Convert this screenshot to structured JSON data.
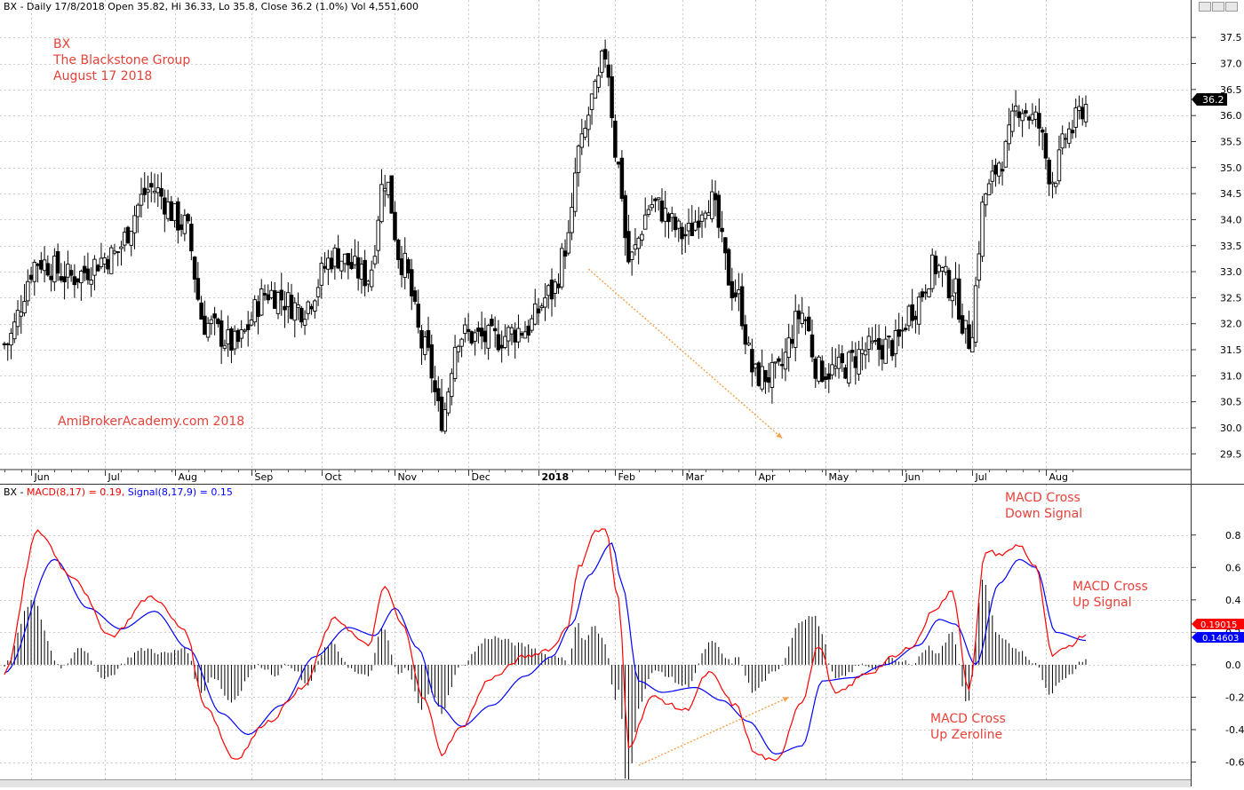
{
  "price_pane": {
    "header": "BX - Daily 17/8/2018 Open 35.82, Hi 36.33, Lo 35.8, Close 36.2 (1.0%) Vol 4,551,600",
    "annotation_ticker": "BX",
    "annotation_company": "The Blackstone Group",
    "annotation_date": "August 17 2018",
    "watermark": "AmiBrokerAcademy.com  2018",
    "price_label": "36.2",
    "months": [
      "Jun",
      "Jul",
      "Aug",
      "Sep",
      "Oct",
      "Nov",
      "Dec",
      "2018",
      "Feb",
      "Mar",
      "Apr",
      "May",
      "Jun",
      "Jul",
      "Aug"
    ]
  },
  "macd_pane": {
    "header_prefix": "BX - ",
    "macd_label": "MACD(8,17) = 0.19, ",
    "signal_label": "Signal(8,17,9) = 0.15",
    "note_cross_down_1": "MACD Cross",
    "note_cross_down_2": "Down Signal",
    "note_cross_up_signal_1": "MACD Cross",
    "note_cross_up_signal_2": "Up Signal",
    "note_zeroline_1": "MACD Cross",
    "note_zeroline_2": "Up Zeroline",
    "macd_value_label": "0.19015",
    "signal_value_label": "0.14603"
  },
  "colors": {
    "macd": "#ff0000",
    "signal": "#0000ff",
    "annotation": "#e8413a",
    "trend_arrow": "#f5a04a",
    "candle": "#000000",
    "histogram": "#000000"
  },
  "chart_data": [
    {
      "type": "candlestick",
      "title": "BX - Daily 17/8/2018",
      "ylim": [
        29.3,
        37.7
      ],
      "y_ticks": [
        29.5,
        30.0,
        30.5,
        31.0,
        31.5,
        32.0,
        32.5,
        33.0,
        33.5,
        34.0,
        34.5,
        35.0,
        35.5,
        36.0,
        36.5,
        37.0,
        37.5
      ],
      "x_start": "2017-05-22",
      "x_end": "2018-08-17",
      "last": {
        "open": 35.82,
        "high": 36.33,
        "low": 35.8,
        "close": 36.2,
        "volume": 4551600,
        "change_pct": 1.0
      },
      "close_path": [
        {
          "date": "2017-05-22",
          "close": 31.6
        },
        {
          "date": "2017-06-05",
          "close": 33.2
        },
        {
          "date": "2017-06-19",
          "close": 32.9
        },
        {
          "date": "2017-07-05",
          "close": 33.3
        },
        {
          "date": "2017-07-21",
          "close": 34.6
        },
        {
          "date": "2017-08-04",
          "close": 33.9
        },
        {
          "date": "2017-08-14",
          "close": 32.0
        },
        {
          "date": "2017-08-25",
          "close": 31.6
        },
        {
          "date": "2017-09-08",
          "close": 32.6
        },
        {
          "date": "2017-09-22",
          "close": 32.3
        },
        {
          "date": "2017-10-06",
          "close": 33.3
        },
        {
          "date": "2017-10-20",
          "close": 32.9
        },
        {
          "date": "2017-10-27",
          "close": 34.8
        },
        {
          "date": "2017-11-03",
          "close": 33.2
        },
        {
          "date": "2017-11-14",
          "close": 31.5
        },
        {
          "date": "2017-11-21",
          "close": 30.2
        },
        {
          "date": "2017-11-28",
          "close": 31.8
        },
        {
          "date": "2017-12-12",
          "close": 31.7
        },
        {
          "date": "2017-12-26",
          "close": 31.9
        },
        {
          "date": "2018-01-05",
          "close": 32.6
        },
        {
          "date": "2018-01-12",
          "close": 33.6
        },
        {
          "date": "2018-01-17",
          "close": 35.3
        },
        {
          "date": "2018-01-24",
          "close": 36.4
        },
        {
          "date": "2018-01-29",
          "close": 37.2
        },
        {
          "date": "2018-02-02",
          "close": 35.0
        },
        {
          "date": "2018-02-07",
          "close": 33.2
        },
        {
          "date": "2018-02-16",
          "close": 34.3
        },
        {
          "date": "2018-03-02",
          "close": 33.7
        },
        {
          "date": "2018-03-13",
          "close": 34.4
        },
        {
          "date": "2018-03-23",
          "close": 32.6
        },
        {
          "date": "2018-04-02",
          "close": 31.0
        },
        {
          "date": "2018-04-10",
          "close": 31.0
        },
        {
          "date": "2018-04-20",
          "close": 32.2
        },
        {
          "date": "2018-04-27",
          "close": 31.1
        },
        {
          "date": "2018-05-04",
          "close": 31.1
        },
        {
          "date": "2018-05-18",
          "close": 31.5
        },
        {
          "date": "2018-05-30",
          "close": 31.6
        },
        {
          "date": "2018-06-06",
          "close": 32.3
        },
        {
          "date": "2018-06-15",
          "close": 33.1
        },
        {
          "date": "2018-06-22",
          "close": 32.7
        },
        {
          "date": "2018-06-29",
          "close": 31.7
        },
        {
          "date": "2018-07-06",
          "close": 34.5
        },
        {
          "date": "2018-07-13",
          "close": 35.2
        },
        {
          "date": "2018-07-20",
          "close": 36.2
        },
        {
          "date": "2018-07-27",
          "close": 35.9
        },
        {
          "date": "2018-08-03",
          "close": 34.8
        },
        {
          "date": "2018-08-10",
          "close": 35.7
        },
        {
          "date": "2018-08-17",
          "close": 36.2
        }
      ],
      "trend_arrow": {
        "from": [
          "2018-01-22",
          33.05
        ],
        "to": [
          "2018-04-12",
          29.8
        ]
      }
    },
    {
      "type": "line",
      "title": "MACD(8,17), Signal(8,17,9)",
      "ylim": [
        -0.63,
        0.93
      ],
      "y_ticks": [
        -0.6,
        -0.4,
        -0.2,
        0.0,
        0.2,
        0.4,
        0.6,
        0.8
      ],
      "last_values": {
        "MACD": 0.19015,
        "Signal": 0.14603
      },
      "series": [
        {
          "name": "MACD",
          "points": [
            {
              "date": "2017-05-22",
              "value": -0.05
            },
            {
              "date": "2017-06-05",
              "value": 0.82
            },
            {
              "date": "2017-06-19",
              "value": 0.55
            },
            {
              "date": "2017-07-05",
              "value": 0.18
            },
            {
              "date": "2017-07-21",
              "value": 0.42
            },
            {
              "date": "2017-08-04",
              "value": 0.22
            },
            {
              "date": "2017-08-14",
              "value": -0.25
            },
            {
              "date": "2017-08-25",
              "value": -0.58
            },
            {
              "date": "2017-09-08",
              "value": -0.35
            },
            {
              "date": "2017-09-22",
              "value": -0.15
            },
            {
              "date": "2017-10-06",
              "value": 0.28
            },
            {
              "date": "2017-10-20",
              "value": 0.12
            },
            {
              "date": "2017-10-27",
              "value": 0.48
            },
            {
              "date": "2017-11-03",
              "value": 0.25
            },
            {
              "date": "2017-11-14",
              "value": -0.22
            },
            {
              "date": "2017-11-21",
              "value": -0.55
            },
            {
              "date": "2017-11-28",
              "value": -0.4
            },
            {
              "date": "2017-12-12",
              "value": -0.08
            },
            {
              "date": "2017-12-26",
              "value": 0.05
            },
            {
              "date": "2018-01-05",
              "value": 0.1
            },
            {
              "date": "2018-01-12",
              "value": 0.25
            },
            {
              "date": "2018-01-17",
              "value": 0.6
            },
            {
              "date": "2018-01-24",
              "value": 0.82
            },
            {
              "date": "2018-01-29",
              "value": 0.84
            },
            {
              "date": "2018-02-02",
              "value": 0.4
            },
            {
              "date": "2018-02-07",
              "value": -0.5
            },
            {
              "date": "2018-02-16",
              "value": -0.2
            },
            {
              "date": "2018-03-02",
              "value": -0.28
            },
            {
              "date": "2018-03-13",
              "value": -0.05
            },
            {
              "date": "2018-03-23",
              "value": -0.25
            },
            {
              "date": "2018-04-02",
              "value": -0.55
            },
            {
              "date": "2018-04-10",
              "value": -0.6
            },
            {
              "date": "2018-04-20",
              "value": -0.22
            },
            {
              "date": "2018-04-27",
              "value": 0.12
            },
            {
              "date": "2018-05-04",
              "value": -0.18
            },
            {
              "date": "2018-05-18",
              "value": -0.05
            },
            {
              "date": "2018-05-30",
              "value": 0.05
            },
            {
              "date": "2018-06-06",
              "value": 0.12
            },
            {
              "date": "2018-06-15",
              "value": 0.35
            },
            {
              "date": "2018-06-22",
              "value": 0.45
            },
            {
              "date": "2018-06-29",
              "value": -0.15
            },
            {
              "date": "2018-07-06",
              "value": 0.7
            },
            {
              "date": "2018-07-13",
              "value": 0.68
            },
            {
              "date": "2018-07-20",
              "value": 0.74
            },
            {
              "date": "2018-07-27",
              "value": 0.6
            },
            {
              "date": "2018-08-03",
              "value": 0.05
            },
            {
              "date": "2018-08-10",
              "value": 0.12
            },
            {
              "date": "2018-08-17",
              "value": 0.19
            }
          ]
        },
        {
          "name": "Signal",
          "points": [
            {
              "date": "2017-05-22",
              "value": -0.05
            },
            {
              "date": "2017-06-12",
              "value": 0.65
            },
            {
              "date": "2017-06-26",
              "value": 0.35
            },
            {
              "date": "2017-07-10",
              "value": 0.22
            },
            {
              "date": "2017-07-24",
              "value": 0.33
            },
            {
              "date": "2017-08-07",
              "value": 0.1
            },
            {
              "date": "2017-08-21",
              "value": -0.3
            },
            {
              "date": "2017-08-31",
              "value": -0.43
            },
            {
              "date": "2017-09-14",
              "value": -0.25
            },
            {
              "date": "2017-09-28",
              "value": 0.05
            },
            {
              "date": "2017-10-12",
              "value": 0.23
            },
            {
              "date": "2017-10-24",
              "value": 0.18
            },
            {
              "date": "2017-11-01",
              "value": 0.35
            },
            {
              "date": "2017-11-10",
              "value": 0.1
            },
            {
              "date": "2017-11-20",
              "value": -0.25
            },
            {
              "date": "2017-11-29",
              "value": -0.38
            },
            {
              "date": "2017-12-12",
              "value": -0.25
            },
            {
              "date": "2017-12-26",
              "value": -0.07
            },
            {
              "date": "2018-01-05",
              "value": 0.05
            },
            {
              "date": "2018-01-15",
              "value": 0.25
            },
            {
              "date": "2018-01-22",
              "value": 0.55
            },
            {
              "date": "2018-01-31",
              "value": 0.75
            },
            {
              "date": "2018-02-05",
              "value": 0.5
            },
            {
              "date": "2018-02-12",
              "value": -0.1
            },
            {
              "date": "2018-02-21",
              "value": -0.17
            },
            {
              "date": "2018-03-07",
              "value": -0.14
            },
            {
              "date": "2018-03-19",
              "value": -0.22
            },
            {
              "date": "2018-03-29",
              "value": -0.35
            },
            {
              "date": "2018-04-10",
              "value": -0.55
            },
            {
              "date": "2018-04-20",
              "value": -0.5
            },
            {
              "date": "2018-04-30",
              "value": -0.1
            },
            {
              "date": "2018-05-11",
              "value": -0.08
            },
            {
              "date": "2018-05-25",
              "value": 0.0
            },
            {
              "date": "2018-06-08",
              "value": 0.12
            },
            {
              "date": "2018-06-18",
              "value": 0.28
            },
            {
              "date": "2018-06-25",
              "value": 0.25
            },
            {
              "date": "2018-07-03",
              "value": 0.0
            },
            {
              "date": "2018-07-12",
              "value": 0.5
            },
            {
              "date": "2018-07-20",
              "value": 0.65
            },
            {
              "date": "2018-07-27",
              "value": 0.6
            },
            {
              "date": "2018-08-06",
              "value": 0.2
            },
            {
              "date": "2018-08-17",
              "value": 0.15
            }
          ]
        }
      ],
      "trend_arrow": {
        "from": [
          "2018-02-12",
          -0.62
        ],
        "to": [
          "2018-04-15",
          -0.2
        ]
      }
    }
  ]
}
